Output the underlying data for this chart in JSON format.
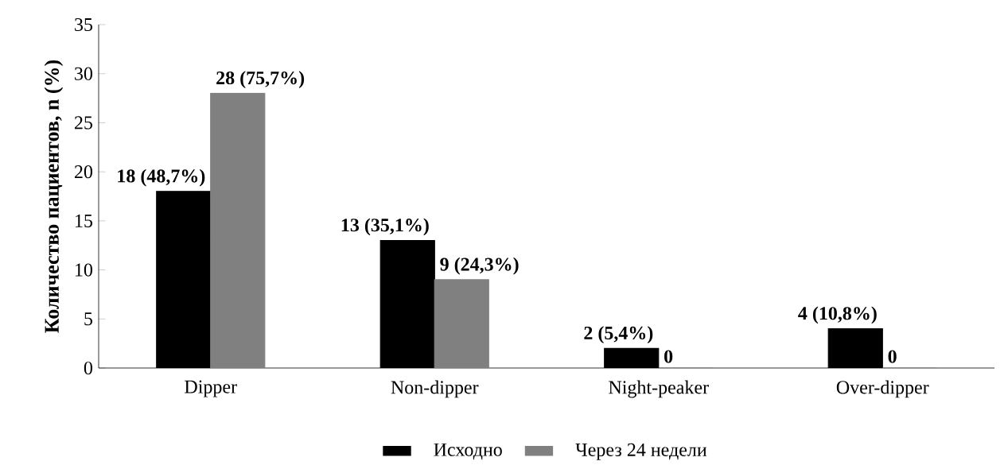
{
  "chart_data": {
    "type": "bar",
    "ylabel": "Количество пациентов, n (%)",
    "categories": [
      "Dipper",
      "Non-dipper",
      "Night-peaker",
      "Over-dipper"
    ],
    "series": [
      {
        "name": "Исходно",
        "color": "#000000",
        "values": [
          18,
          13,
          2,
          4
        ],
        "value_labels": [
          "18 (48,7%)",
          "13 (35,1%)",
          "2 (5,4%)",
          "4 (10,8%)"
        ]
      },
      {
        "name": "Через 24 недели",
        "color": "#808080",
        "values": [
          28,
          9,
          0,
          0
        ],
        "value_labels": [
          "28 (75,7%)",
          "9 (24,3%)",
          "0",
          "0"
        ]
      }
    ],
    "ylim": [
      0,
      35
    ],
    "yticks": [
      0,
      5,
      10,
      15,
      20,
      25,
      30,
      35
    ],
    "grid": false,
    "legend": "bottom"
  }
}
